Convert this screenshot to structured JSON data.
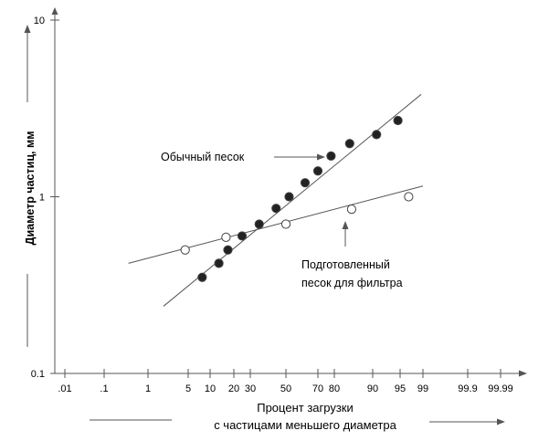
{
  "chart_data": {
    "type": "scatter",
    "title": "",
    "xlabel_lines": [
      "Процент загрузки",
      "с частицами меньшего диаметра"
    ],
    "ylabel": "Диаметр частиц, мм",
    "x_scale": "probability",
    "y_scale": "log",
    "ylim": [
      0.1,
      10
    ],
    "x_ticks": [
      {
        "value": 0.01,
        "label": ".01"
      },
      {
        "value": 0.1,
        "label": ".1"
      },
      {
        "value": 1,
        "label": "1"
      },
      {
        "value": 5,
        "label": "5"
      },
      {
        "value": 10,
        "label": "10"
      },
      {
        "value": 20,
        "label": "20"
      },
      {
        "value": 30,
        "label": "30"
      },
      {
        "value": 50,
        "label": "50"
      },
      {
        "value": 70,
        "label": "70"
      },
      {
        "value": 80,
        "label": "80"
      },
      {
        "value": 90,
        "label": "90"
      },
      {
        "value": 95,
        "label": "95"
      },
      {
        "value": 99,
        "label": "99"
      },
      {
        "value": 99.9,
        "label": "99.9"
      },
      {
        "value": 99.99,
        "label": "99.99"
      }
    ],
    "y_ticks": [
      {
        "value": 0.1,
        "label": "0.1"
      },
      {
        "value": 1,
        "label": "1"
      },
      {
        "value": 10,
        "label": "10"
      }
    ],
    "series": [
      {
        "name": "Обычный песок",
        "marker": "filled-circle",
        "points": [
          {
            "x": 8.2,
            "y": 0.35
          },
          {
            "x": 13.7,
            "y": 0.42
          },
          {
            "x": 17.5,
            "y": 0.5
          },
          {
            "x": 25,
            "y": 0.6
          },
          {
            "x": 35,
            "y": 0.7
          },
          {
            "x": 44.5,
            "y": 0.86
          },
          {
            "x": 52,
            "y": 1.0
          },
          {
            "x": 62,
            "y": 1.2
          },
          {
            "x": 70,
            "y": 1.4
          },
          {
            "x": 78,
            "y": 1.7
          },
          {
            "x": 84,
            "y": 2.0
          },
          {
            "x": 90.7,
            "y": 2.25
          },
          {
            "x": 94.6,
            "y": 2.7
          }
        ],
        "fit_line": [
          {
            "x": 2.54,
            "y": 0.24
          },
          {
            "x": 98.7,
            "y": 3.8
          }
        ]
      },
      {
        "name": "Подготовленный песок для фильтра",
        "marker": "open-circle",
        "points": [
          {
            "x": 4.7,
            "y": 0.5
          },
          {
            "x": 16.7,
            "y": 0.59
          },
          {
            "x": 50,
            "y": 0.7
          },
          {
            "x": 84.5,
            "y": 0.85
          },
          {
            "x": 96.5,
            "y": 1.0
          }
        ],
        "fit_line": [
          {
            "x": 0.6,
            "y": 0.42
          },
          {
            "x": 99,
            "y": 1.15
          }
        ]
      }
    ],
    "annotations": [
      {
        "text": "Обычный песок",
        "series": "Обычный песок"
      },
      {
        "text_lines": [
          "Подготовленный",
          "песок для фильтра"
        ],
        "series": "Подготовленный песок для фильтра"
      }
    ]
  }
}
